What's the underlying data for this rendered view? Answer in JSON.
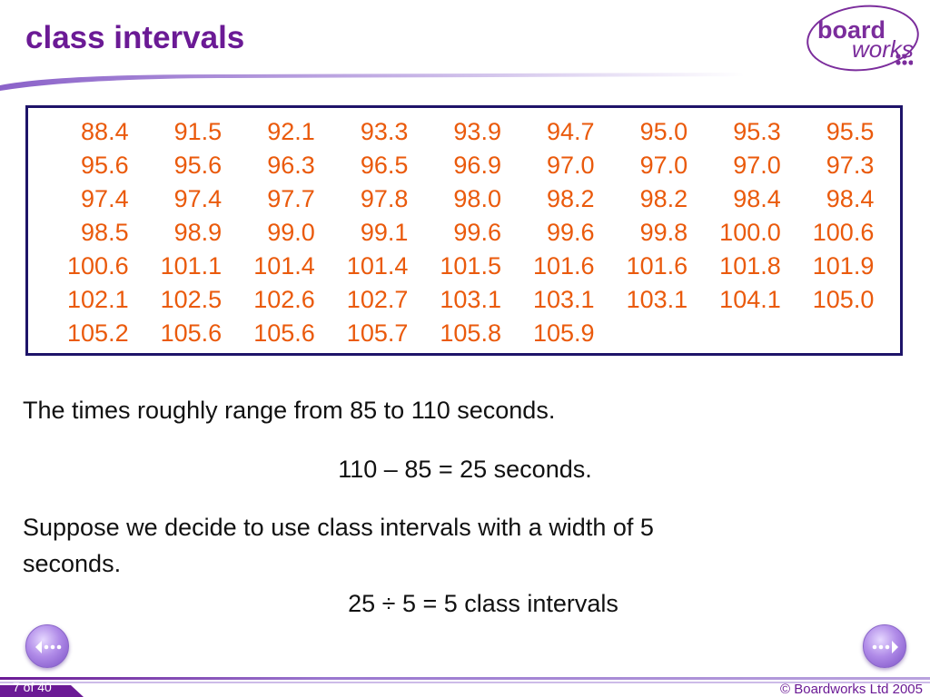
{
  "slide": {
    "title": "class intervals"
  },
  "logo": {
    "word1": "board",
    "word2": "works"
  },
  "data_table": {
    "rows": [
      [
        "88.4",
        "91.5",
        "92.1",
        "93.3",
        "93.9",
        "94.7",
        "95.0",
        "95.3",
        "95.5"
      ],
      [
        "95.6",
        "95.6",
        "96.3",
        "96.5",
        "96.9",
        "97.0",
        "97.0",
        "97.0",
        "97.3"
      ],
      [
        "97.4",
        "97.4",
        "97.7",
        "97.8",
        "98.0",
        "98.2",
        "98.2",
        "98.4",
        "98.4"
      ],
      [
        "98.5",
        "98.9",
        "99.0",
        "99.1",
        "99.6",
        "99.6",
        "99.8",
        "100.0",
        "100.6"
      ],
      [
        "100.6",
        "101.1",
        "101.4",
        "101.4",
        "101.5",
        "101.6",
        "101.6",
        "101.8",
        "101.9"
      ],
      [
        "102.1",
        "102.5",
        "102.6",
        "102.7",
        "103.1",
        "103.1",
        "103.1",
        "104.1",
        "105.0"
      ],
      [
        "105.2",
        "105.6",
        "105.6",
        "105.7",
        "105.8",
        "105.9",
        "",
        "",
        ""
      ]
    ]
  },
  "body": {
    "line1": "The times roughly range from 85 to 110 seconds.",
    "line2": "110 – 85 = 25 seconds.",
    "line3a": "Suppose we decide to use class intervals with a width of 5",
    "line3b": "seconds.",
    "line4": "25 ÷ 5 = 5 class intervals"
  },
  "navigation": {
    "prev_icon": "back-arrow-icon",
    "next_icon": "forward-arrow-icon"
  },
  "footer": {
    "page": "7 of 40",
    "copyright": "© Boardworks Ltd 2005"
  },
  "colors": {
    "title": "#6b1a95",
    "data": "#ea5a0c",
    "box_border": "#1e1469",
    "footer_bar": "#6b1a95"
  }
}
